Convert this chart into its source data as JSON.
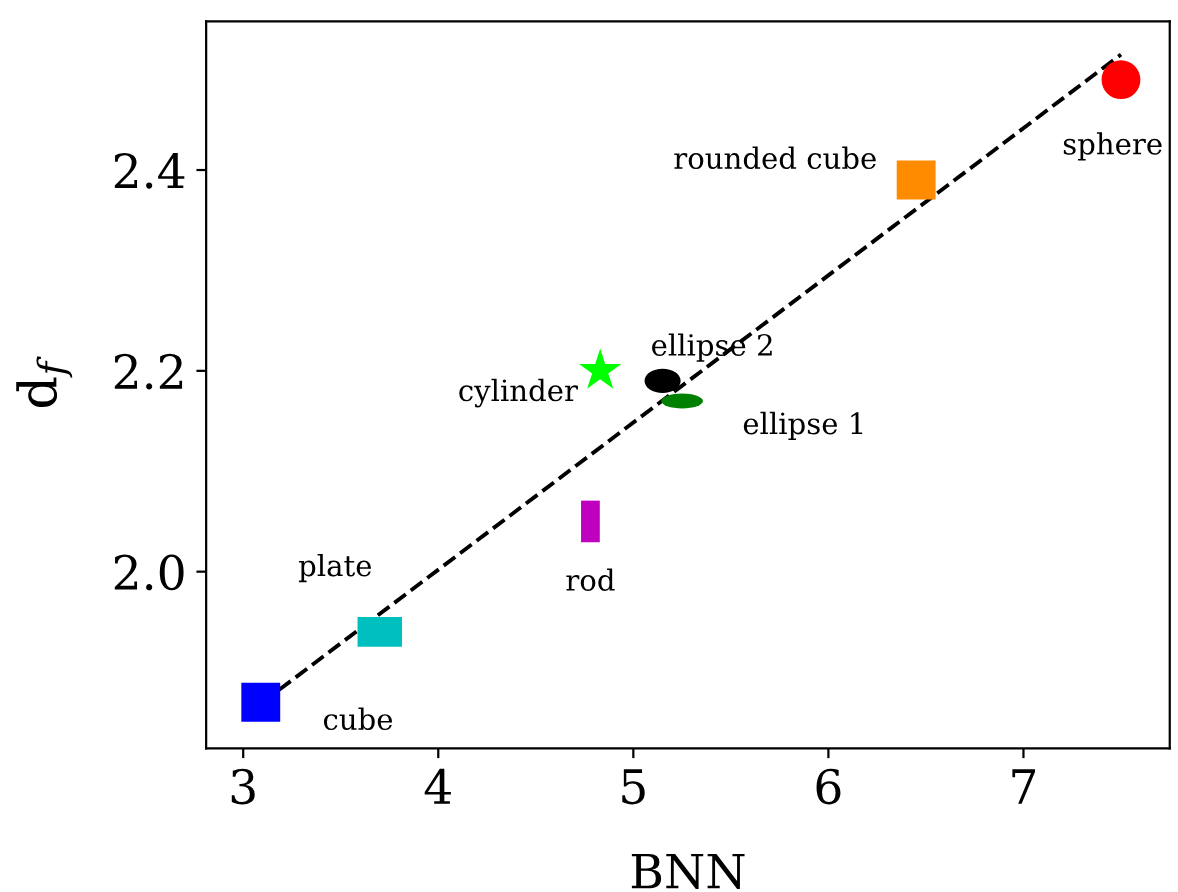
{
  "chart_data": {
    "type": "scatter",
    "xlabel": "BNN",
    "ylabel": "d$_{f}$",
    "xlim": [
      2.81,
      7.75
    ],
    "ylim": [
      1.824,
      2.548
    ],
    "xticks": [
      3,
      4,
      5,
      6,
      7
    ],
    "yticks": [
      {
        "value": 2.0,
        "label": "2.0"
      },
      2.2,
      2.4
    ],
    "grid": false,
    "legend": false,
    "series": [
      {
        "name": "cube",
        "color": "#0000ff",
        "marker": "square",
        "x": [
          3.09
        ],
        "values": [
          1.87
        ]
      },
      {
        "name": "plate",
        "color": "#00bfbf",
        "marker": "square",
        "x": [
          3.7
        ],
        "values": [
          1.94
        ]
      },
      {
        "name": "rod",
        "color": "#bf00bf",
        "marker": "square",
        "x": [
          4.78
        ],
        "values": [
          2.05
        ]
      },
      {
        "name": "cylinder",
        "color": "#00ff00",
        "marker": "star",
        "x": [
          4.83
        ],
        "values": [
          2.2
        ]
      },
      {
        "name": "ellipse 2",
        "color": "#000000",
        "marker": "circle",
        "x": [
          5.15
        ],
        "values": [
          2.19
        ]
      },
      {
        "name": "ellipse 1",
        "color": "#008000",
        "marker": "circle",
        "x": [
          5.25
        ],
        "values": [
          2.17
        ]
      },
      {
        "name": "rounded cube",
        "color": "#ff8c00",
        "marker": "square",
        "x": [
          6.45
        ],
        "values": [
          2.39
        ]
      },
      {
        "name": "sphere",
        "color": "#ff0000",
        "marker": "circle",
        "x": [
          7.5
        ],
        "values": [
          2.49
        ]
      },
      {
        "type": "line",
        "color": "#000000",
        "line_style": "dashed",
        "marker": "none",
        "x": [
          3.1,
          7.5
        ],
        "values": [
          1.87,
          2.515
        ]
      }
    ]
  }
}
